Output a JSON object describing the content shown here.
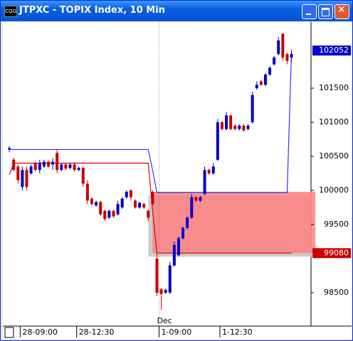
{
  "window": {
    "title": "JTPXC - TOPIX Index, 10 Min",
    "icon": "CQG"
  },
  "chart_data": {
    "type": "candlestick",
    "categories": [
      null,
      null,
      null,
      "28-09:00",
      null,
      null,
      null,
      null,
      null,
      null,
      null,
      null,
      null,
      null,
      null,
      null,
      "28-12:30",
      null,
      null,
      null,
      null,
      null,
      null,
      null,
      null,
      null,
      null,
      null,
      null,
      null,
      null,
      null,
      null,
      null,
      null,
      "1-09:00",
      null,
      null,
      null,
      null,
      null,
      null,
      null,
      null,
      null,
      null,
      null,
      null,
      null,
      "1-12:30",
      null,
      null,
      null,
      null,
      null,
      null,
      null,
      null,
      null,
      null,
      null,
      null,
      null,
      null,
      null,
      null
    ],
    "separator": {
      "index": 35,
      "label": "Dec"
    },
    "open": [
      100600,
      100450,
      100350,
      100050,
      100300,
      100250,
      100400,
      100300,
      100350,
      100420,
      100380,
      100550,
      100300,
      100380,
      100330,
      100380,
      100300,
      100330,
      100100,
      99880,
      99780,
      99830,
      99700,
      99600,
      99700,
      99650,
      99750,
      99900,
      100000,
      99850,
      99750,
      99800,
      99700,
      99980,
      99000,
      98550,
      98500,
      98500,
      98900,
      99050,
      99300,
      99450,
      99600,
      99900,
      99850,
      99950,
      100300,
      100250,
      100450,
      101000,
      100900,
      101100,
      100950,
      100900,
      100950,
      100900,
      101000,
      101500,
      101600,
      101550,
      101700,
      101850,
      102000,
      102300,
      102000,
      101950
    ],
    "high": [
      100650,
      100480,
      100380,
      100350,
      100350,
      100380,
      100420,
      100450,
      100450,
      100440,
      100470,
      100600,
      100400,
      100400,
      100400,
      100420,
      100350,
      100350,
      100150,
      99900,
      99850,
      99850,
      99720,
      99720,
      99720,
      99850,
      99900,
      100000,
      100020,
      99870,
      99830,
      99820,
      99720,
      100000,
      99100,
      98570,
      98560,
      98950,
      99250,
      99320,
      99470,
      99620,
      99950,
      99920,
      99920,
      100350,
      100320,
      100400,
      101050,
      101020,
      101150,
      101120,
      100970,
      100970,
      100970,
      100970,
      101450,
      101600,
      101620,
      101720,
      101820,
      101970,
      102250,
      102300,
      102020,
      102060
    ],
    "low": [
      100560,
      100280,
      100100,
      100000,
      100000,
      100230,
      100280,
      100250,
      100330,
      100330,
      100300,
      100250,
      100280,
      100300,
      100310,
      100270,
      100280,
      100050,
      99800,
      99780,
      99760,
      99630,
      99550,
      99580,
      99600,
      99630,
      99730,
      99880,
      99850,
      99730,
      99730,
      99730,
      99550,
      99780,
      98450,
      98250,
      98480,
      98480,
      98880,
      99030,
      99280,
      99430,
      99580,
      99830,
      99830,
      99930,
      100230,
      100230,
      100430,
      100880,
      100880,
      100880,
      100880,
      100880,
      100860,
      100880,
      100980,
      101480,
      101530,
      101530,
      101680,
      101830,
      101980,
      101900,
      101850,
      101900
    ],
    "close": [
      100620,
      100300,
      100150,
      100300,
      100050,
      100350,
      100300,
      100400,
      100420,
      100350,
      100420,
      100300,
      100380,
      100320,
      100380,
      100300,
      100330,
      100100,
      99850,
      99800,
      99830,
      99650,
      99580,
      99700,
      99620,
      99800,
      99880,
      99980,
      99900,
      99750,
      99820,
      99750,
      99600,
      99800,
      98500,
      98480,
      98540,
      98900,
      99200,
      99300,
      99450,
      99600,
      99900,
      99850,
      99900,
      100300,
      100250,
      100350,
      101000,
      100900,
      101100,
      100900,
      100900,
      100950,
      100880,
      100950,
      101400,
      101550,
      101550,
      101700,
      101800,
      101950,
      102200,
      101950,
      101900,
      102000
    ],
    "up_color": "#0000c8",
    "down_color": "#c80000",
    "series": [
      {
        "color": "#3030ff",
        "values": [
          100600,
          100600,
          100600,
          100600,
          100600,
          100600,
          100600,
          100600,
          100600,
          100600,
          100600,
          100600,
          100600,
          100600,
          100600,
          100600,
          100600,
          100600,
          100600,
          100600,
          100600,
          100600,
          100600,
          100600,
          100600,
          100600,
          100600,
          100600,
          100600,
          100600,
          100600,
          100600,
          100600,
          100300,
          99970,
          99970,
          99970,
          99970,
          99970,
          99970,
          99970,
          99970,
          99970,
          99970,
          99970,
          99970,
          99970,
          99970,
          99970,
          99970,
          99970,
          99970,
          99970,
          99970,
          99970,
          99970,
          99970,
          99970,
          99970,
          99970,
          99970,
          99970,
          99970,
          99970,
          99970,
          102030
        ]
      },
      {
        "color": "#e00000",
        "values": [
          100230,
          100400,
          100400,
          100400,
          100400,
          100400,
          100400,
          100400,
          100400,
          100400,
          100400,
          100400,
          100400,
          100400,
          100400,
          100400,
          100400,
          100400,
          100400,
          100400,
          100400,
          100400,
          100400,
          100400,
          100400,
          100400,
          100400,
          100400,
          100400,
          100400,
          100400,
          100400,
          100400,
          99700,
          99080,
          99080,
          99080,
          99080,
          99080,
          99080,
          99080,
          99080,
          99080,
          99080,
          99080,
          99080,
          99080,
          99080,
          99080,
          99080,
          99080,
          99080,
          99080,
          99080,
          99080,
          99080,
          99080,
          99080,
          99080,
          99080,
          99080,
          99080,
          99080,
          99080,
          99080,
          99080
        ]
      }
    ],
    "zone": {
      "xlim": [
        33,
        70.5
      ],
      "ylim": [
        99080,
        99980
      ],
      "color": "#ff8080"
    },
    "markers": [
      {
        "value": 102052,
        "color": "#0000c8"
      },
      {
        "value": 99080,
        "color": "#c80000"
      }
    ],
    "xlim": [
      -1,
      69.5
    ],
    "ylim": [
      98010,
      102470
    ],
    "yticks": [
      98500,
      99500,
      100000,
      100500,
      101000,
      101500
    ]
  }
}
